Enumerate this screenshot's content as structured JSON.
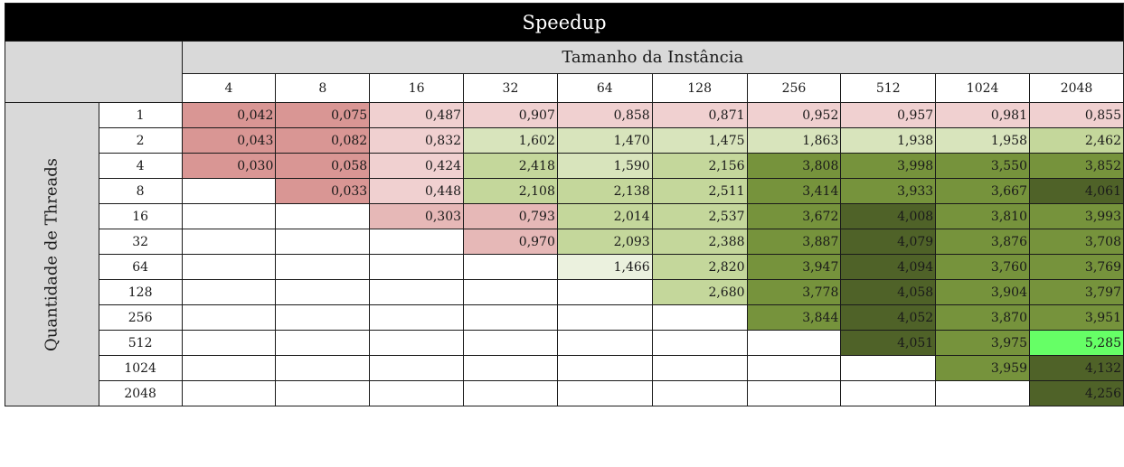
{
  "title": "Speedup",
  "col_group_label": "Tamanho da Instância",
  "row_group_label": "Quantidade de Threads",
  "columns": [
    "4",
    "8",
    "16",
    "32",
    "64",
    "128",
    "256",
    "512",
    "1024",
    "2048"
  ],
  "colors": {
    "empty": "#ffffff",
    "red_strong": "#d99694",
    "red_mid": "#e6b8b7",
    "red_light": "#f0d0d0",
    "green_very_light": "#ebf1de",
    "green_light": "#d8e4bc",
    "green_mid": "#c4d79b",
    "green_strong": "#76933c",
    "green_dark": "#4f6228",
    "green_bright": "#66ff66"
  },
  "rows": [
    {
      "label": "1",
      "cells": [
        {
          "v": "0,042",
          "c": "red_strong"
        },
        {
          "v": "0,075",
          "c": "red_strong"
        },
        {
          "v": "0,487",
          "c": "red_light"
        },
        {
          "v": "0,907",
          "c": "red_light"
        },
        {
          "v": "0,858",
          "c": "red_light"
        },
        {
          "v": "0,871",
          "c": "red_light"
        },
        {
          "v": "0,952",
          "c": "red_light"
        },
        {
          "v": "0,957",
          "c": "red_light"
        },
        {
          "v": "0,981",
          "c": "red_light"
        },
        {
          "v": "0,855",
          "c": "red_light"
        }
      ]
    },
    {
      "label": "2",
      "cells": [
        {
          "v": "0,043",
          "c": "red_strong"
        },
        {
          "v": "0,082",
          "c": "red_strong"
        },
        {
          "v": "0,832",
          "c": "red_light"
        },
        {
          "v": "1,602",
          "c": "green_light"
        },
        {
          "v": "1,470",
          "c": "green_light"
        },
        {
          "v": "1,475",
          "c": "green_light"
        },
        {
          "v": "1,863",
          "c": "green_light"
        },
        {
          "v": "1,938",
          "c": "green_light"
        },
        {
          "v": "1,958",
          "c": "green_light"
        },
        {
          "v": "2,462",
          "c": "green_mid"
        }
      ]
    },
    {
      "label": "4",
      "cells": [
        {
          "v": "0,030",
          "c": "red_strong"
        },
        {
          "v": "0,058",
          "c": "red_strong"
        },
        {
          "v": "0,424",
          "c": "red_light"
        },
        {
          "v": "2,418",
          "c": "green_mid"
        },
        {
          "v": "1,590",
          "c": "green_light"
        },
        {
          "v": "2,156",
          "c": "green_mid"
        },
        {
          "v": "3,808",
          "c": "green_strong"
        },
        {
          "v": "3,998",
          "c": "green_strong"
        },
        {
          "v": "3,550",
          "c": "green_strong"
        },
        {
          "v": "3,852",
          "c": "green_strong"
        }
      ]
    },
    {
      "label": "8",
      "cells": [
        {
          "v": "",
          "c": "empty"
        },
        {
          "v": "0,033",
          "c": "red_strong"
        },
        {
          "v": "0,448",
          "c": "red_light"
        },
        {
          "v": "2,108",
          "c": "green_mid"
        },
        {
          "v": "2,138",
          "c": "green_mid"
        },
        {
          "v": "2,511",
          "c": "green_mid"
        },
        {
          "v": "3,414",
          "c": "green_strong"
        },
        {
          "v": "3,933",
          "c": "green_strong"
        },
        {
          "v": "3,667",
          "c": "green_strong"
        },
        {
          "v": "4,061",
          "c": "green_dark"
        }
      ]
    },
    {
      "label": "16",
      "cells": [
        {
          "v": "",
          "c": "empty"
        },
        {
          "v": "",
          "c": "empty"
        },
        {
          "v": "0,303",
          "c": "red_mid"
        },
        {
          "v": "0,793",
          "c": "red_mid"
        },
        {
          "v": "2,014",
          "c": "green_mid"
        },
        {
          "v": "2,537",
          "c": "green_mid"
        },
        {
          "v": "3,672",
          "c": "green_strong"
        },
        {
          "v": "4,008",
          "c": "green_dark"
        },
        {
          "v": "3,810",
          "c": "green_strong"
        },
        {
          "v": "3,993",
          "c": "green_strong"
        }
      ]
    },
    {
      "label": "32",
      "cells": [
        {
          "v": "",
          "c": "empty"
        },
        {
          "v": "",
          "c": "empty"
        },
        {
          "v": "",
          "c": "empty"
        },
        {
          "v": "0,970",
          "c": "red_mid"
        },
        {
          "v": "2,093",
          "c": "green_mid"
        },
        {
          "v": "2,388",
          "c": "green_mid"
        },
        {
          "v": "3,887",
          "c": "green_strong"
        },
        {
          "v": "4,079",
          "c": "green_dark"
        },
        {
          "v": "3,876",
          "c": "green_strong"
        },
        {
          "v": "3,708",
          "c": "green_strong"
        }
      ]
    },
    {
      "label": "64",
      "cells": [
        {
          "v": "",
          "c": "empty"
        },
        {
          "v": "",
          "c": "empty"
        },
        {
          "v": "",
          "c": "empty"
        },
        {
          "v": "",
          "c": "empty"
        },
        {
          "v": "1,466",
          "c": "green_very_light"
        },
        {
          "v": "2,820",
          "c": "green_mid"
        },
        {
          "v": "3,947",
          "c": "green_strong"
        },
        {
          "v": "4,094",
          "c": "green_dark"
        },
        {
          "v": "3,760",
          "c": "green_strong"
        },
        {
          "v": "3,769",
          "c": "green_strong"
        }
      ]
    },
    {
      "label": "128",
      "cells": [
        {
          "v": "",
          "c": "empty"
        },
        {
          "v": "",
          "c": "empty"
        },
        {
          "v": "",
          "c": "empty"
        },
        {
          "v": "",
          "c": "empty"
        },
        {
          "v": "",
          "c": "empty"
        },
        {
          "v": "2,680",
          "c": "green_mid"
        },
        {
          "v": "3,778",
          "c": "green_strong"
        },
        {
          "v": "4,058",
          "c": "green_dark"
        },
        {
          "v": "3,904",
          "c": "green_strong"
        },
        {
          "v": "3,797",
          "c": "green_strong"
        }
      ]
    },
    {
      "label": "256",
      "cells": [
        {
          "v": "",
          "c": "empty"
        },
        {
          "v": "",
          "c": "empty"
        },
        {
          "v": "",
          "c": "empty"
        },
        {
          "v": "",
          "c": "empty"
        },
        {
          "v": "",
          "c": "empty"
        },
        {
          "v": "",
          "c": "empty"
        },
        {
          "v": "3,844",
          "c": "green_strong"
        },
        {
          "v": "4,052",
          "c": "green_dark"
        },
        {
          "v": "3,870",
          "c": "green_strong"
        },
        {
          "v": "3,951",
          "c": "green_strong"
        }
      ]
    },
    {
      "label": "512",
      "cells": [
        {
          "v": "",
          "c": "empty"
        },
        {
          "v": "",
          "c": "empty"
        },
        {
          "v": "",
          "c": "empty"
        },
        {
          "v": "",
          "c": "empty"
        },
        {
          "v": "",
          "c": "empty"
        },
        {
          "v": "",
          "c": "empty"
        },
        {
          "v": "",
          "c": "empty"
        },
        {
          "v": "4,051",
          "c": "green_dark"
        },
        {
          "v": "3,975",
          "c": "green_strong"
        },
        {
          "v": "5,285",
          "c": "green_bright"
        }
      ]
    },
    {
      "label": "1024",
      "cells": [
        {
          "v": "",
          "c": "empty"
        },
        {
          "v": "",
          "c": "empty"
        },
        {
          "v": "",
          "c": "empty"
        },
        {
          "v": "",
          "c": "empty"
        },
        {
          "v": "",
          "c": "empty"
        },
        {
          "v": "",
          "c": "empty"
        },
        {
          "v": "",
          "c": "empty"
        },
        {
          "v": "",
          "c": "empty"
        },
        {
          "v": "3,959",
          "c": "green_strong"
        },
        {
          "v": "4,132",
          "c": "green_dark"
        }
      ]
    },
    {
      "label": "2048",
      "cells": [
        {
          "v": "",
          "c": "empty"
        },
        {
          "v": "",
          "c": "empty"
        },
        {
          "v": "",
          "c": "empty"
        },
        {
          "v": "",
          "c": "empty"
        },
        {
          "v": "",
          "c": "empty"
        },
        {
          "v": "",
          "c": "empty"
        },
        {
          "v": "",
          "c": "empty"
        },
        {
          "v": "",
          "c": "empty"
        },
        {
          "v": "",
          "c": "empty"
        },
        {
          "v": "4,256",
          "c": "green_dark"
        }
      ]
    }
  ]
}
